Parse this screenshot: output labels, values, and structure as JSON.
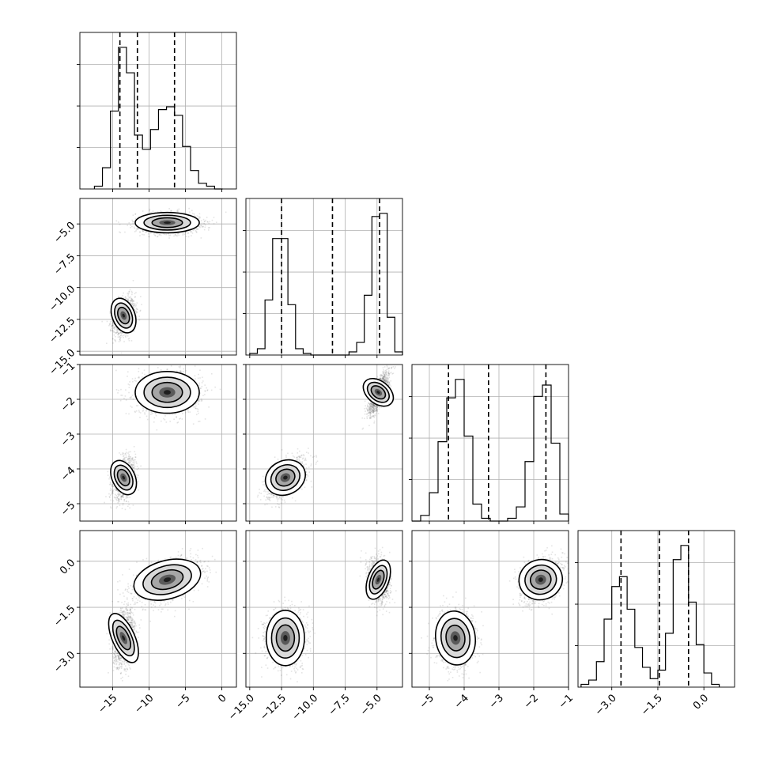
{
  "chart_data": {
    "type": "corner",
    "title": "",
    "n_params": 4,
    "grid": true,
    "params": [
      {
        "range": [
          -19.5,
          2.0
        ],
        "ticks": [
          -15,
          -10,
          -5,
          0
        ],
        "tick_labels": [
          "−15",
          "−10",
          "−5",
          "0"
        ],
        "quantiles": [
          -14.0,
          -11.6,
          -6.5
        ],
        "hist": {
          "bins": [
            -17.5,
            -16.4,
            -15.3,
            -14.2,
            -13.1,
            -12.0,
            -10.9,
            -9.8,
            -8.7,
            -7.6,
            -6.5,
            -5.4,
            -4.3,
            -3.2,
            -2.1,
            -1.0,
            0.1
          ],
          "counts": [
            0.02,
            0.15,
            0.55,
            1.0,
            0.82,
            0.38,
            0.28,
            0.42,
            0.56,
            0.58,
            0.52,
            0.3,
            0.13,
            0.04,
            0.02,
            0.0
          ]
        }
      },
      {
        "range": [
          -15.3,
          -3.0
        ],
        "ticks": [
          -15.0,
          -12.5,
          -10.0,
          -7.5,
          -5.0
        ],
        "tick_labels": [
          "−15.0",
          "−12.5",
          "−10.0",
          "−7.5",
          "−5.0"
        ],
        "quantiles": [
          -12.5,
          -8.5,
          -4.8
        ],
        "hist": {
          "bins": [
            -15.0,
            -14.4,
            -13.8,
            -13.2,
            -12.6,
            -12.0,
            -11.4,
            -10.8,
            -10.2,
            -9.6,
            -9.0,
            -8.4,
            -7.8,
            -7.2,
            -6.6,
            -6.0,
            -5.4,
            -4.8,
            -4.2,
            -3.6,
            -3.0
          ],
          "counts": [
            0.01,
            0.04,
            0.35,
            0.74,
            0.74,
            0.32,
            0.04,
            0.01,
            0.0,
            0.0,
            0.0,
            0.0,
            0.0,
            0.02,
            0.08,
            0.38,
            0.88,
            0.9,
            0.24,
            0.02
          ]
        }
      },
      {
        "range": [
          -5.5,
          -1.0
        ],
        "ticks": [
          -5,
          -4,
          -3,
          -2,
          -1
        ],
        "tick_labels": [
          "−5",
          "−4",
          "−3",
          "−2",
          "−1"
        ],
        "quantiles": [
          -4.45,
          -3.3,
          -1.65
        ],
        "hist": {
          "bins": [
            -5.5,
            -5.25,
            -5.0,
            -4.75,
            -4.5,
            -4.25,
            -4.0,
            -3.75,
            -3.5,
            -3.25,
            -3.0,
            -2.75,
            -2.5,
            -2.25,
            -2.0,
            -1.75,
            -1.5,
            -1.25,
            -1.0
          ],
          "counts": [
            0.0,
            0.04,
            0.2,
            0.56,
            0.87,
            1.0,
            0.6,
            0.12,
            0.02,
            0.0,
            0.0,
            0.02,
            0.1,
            0.42,
            0.88,
            0.96,
            0.55,
            0.05
          ]
        }
      },
      {
        "range": [
          -4.1,
          1.0
        ],
        "ticks": [
          -3.0,
          -1.5,
          0.0
        ],
        "tick_labels": [
          "−3.0",
          "−1.5",
          "0.0"
        ],
        "quantiles": [
          -2.7,
          -1.45,
          -0.5
        ],
        "hist": {
          "bins": [
            -4.0,
            -3.75,
            -3.5,
            -3.25,
            -3.0,
            -2.75,
            -2.5,
            -2.25,
            -2.0,
            -1.75,
            -1.5,
            -1.25,
            -1.0,
            -0.75,
            -0.5,
            -0.25,
            0.0,
            0.25,
            0.5
          ],
          "counts": [
            0.02,
            0.05,
            0.18,
            0.48,
            0.71,
            0.78,
            0.55,
            0.28,
            0.14,
            0.06,
            0.12,
            0.38,
            0.9,
            1.0,
            0.6,
            0.3,
            0.1,
            0.02
          ]
        }
      }
    ],
    "modes": [
      {
        "center": [
          -13.5,
          -12.2,
          -4.25,
          -2.5
        ],
        "sd": [
          0.75,
          0.75,
          0.28,
          0.45
        ],
        "weight": 0.5
      },
      {
        "center": [
          -7.5,
          -4.9,
          -1.8,
          -0.6
        ],
        "sd": [
          2.2,
          0.4,
          0.3,
          0.35
        ],
        "weight": 0.5
      }
    ]
  }
}
